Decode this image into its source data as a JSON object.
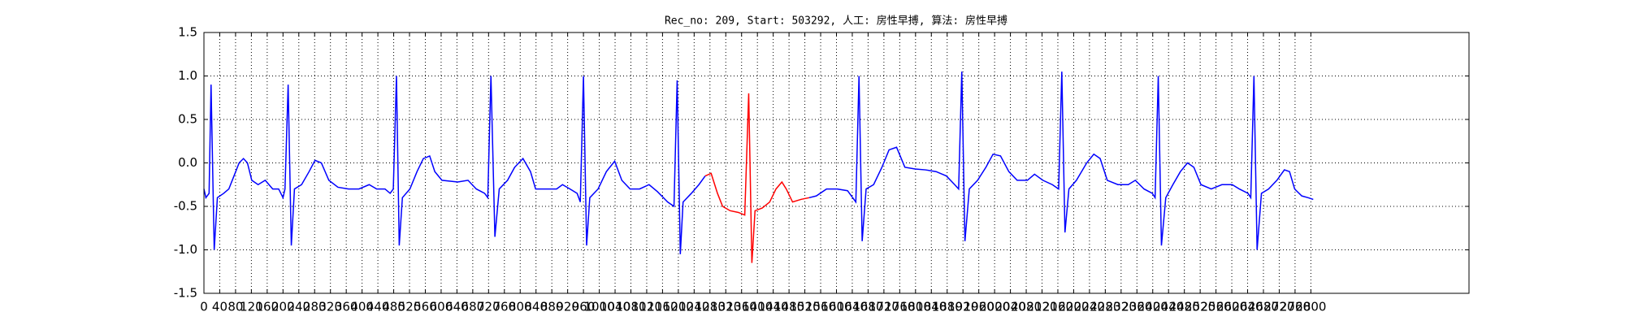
{
  "chart_data": {
    "type": "line",
    "title": "Rec_no: 209, Start: 503292, 人工: 房性早搏, 算法: 房性早搏",
    "xlim": [
      0,
      3200
    ],
    "ylim": [
      -1.5,
      1.5
    ],
    "xticks": [
      0,
      40,
      80,
      120,
      160,
      200,
      240,
      280,
      320,
      360,
      400,
      440,
      480,
      520,
      560,
      600,
      640,
      680,
      720,
      760,
      800,
      840,
      880,
      920,
      960,
      1000,
      1040,
      1080,
      1120,
      1160,
      1200,
      1240,
      1280,
      1320,
      1360,
      1400,
      1440,
      1480,
      1520,
      1560,
      1600,
      1640,
      1680,
      1720,
      1760,
      1800,
      1840,
      1880,
      1920,
      1960,
      2000,
      2040,
      2080,
      2120,
      2160,
      2200,
      2240,
      2280,
      2320,
      2360,
      2400,
      2440,
      2480,
      2520,
      2560,
      2600,
      2640,
      2680,
      2720,
      2760,
      2800
    ],
    "yticks": [
      -1.5,
      {
        "value": -1,
        "label": "-1.0"
      },
      -0.5,
      {
        "value": 0,
        "label": "0.0"
      },
      0.5,
      {
        "value": 1,
        "label": "1.0"
      },
      1.5
    ],
    "grid": true,
    "series": [
      {
        "color": "#0000ff",
        "x": [
          0,
          5,
          13,
          18,
          26,
          34,
          50,
          63,
          76,
          89,
          100,
          110,
          121,
          137,
          155,
          174,
          189,
          200,
          205,
          213,
          221,
          229,
          247,
          266,
          281,
          297,
          316,
          339,
          366,
          392,
          418,
          437,
          458,
          471,
          479,
          487,
          494,
          502,
          521,
          539,
          555,
          571,
          584,
          602,
          642,
          668,
          689,
          710,
          718,
          726,
          736,
          747,
          768,
          786,
          807,
          826,
          839,
          865,
          892,
          907,
          926,
          944,
          952,
          960,
          968,
          976,
          997,
          1018,
          1039,
          1057,
          1078,
          1102,
          1126,
          1147,
          1173,
          1189,
          1197,
          1205,
          1212,
          1233,
          1252,
          1268,
          1378,
          1531,
          1549,
          1575,
          1602,
          1628,
          1641,
          1649,
          1657,
          1665,
          1675,
          1694,
          1715,
          1733,
          1752,
          1773,
          1799,
          1825,
          1852,
          1878,
          1899,
          1909,
          1917,
          1925,
          1936,
          1957,
          1978,
          1996,
          2015,
          2036,
          2057,
          2083,
          2101,
          2122,
          2146,
          2162,
          2170,
          2178,
          2188,
          2207,
          2233,
          2251,
          2267,
          2285,
          2312,
          2338,
          2356,
          2378,
          2399,
          2406,
          2414,
          2422,
          2433,
          2451,
          2470,
          2488,
          2504,
          2522,
          2548,
          2575,
          2601,
          2619,
          2641,
          2648,
          2656,
          2664,
          2675,
          2693,
          2714,
          2733,
          2746,
          2759,
          2777,
          2793,
          2806
        ],
        "values": [
          -0.3,
          -0.4,
          -0.35,
          0.9,
          -1.0,
          -0.4,
          -0.35,
          -0.3,
          -0.15,
          0.0,
          0.05,
          0.0,
          -0.2,
          -0.25,
          -0.2,
          -0.3,
          -0.3,
          -0.4,
          -0.3,
          0.9,
          -0.95,
          -0.3,
          -0.25,
          -0.1,
          0.03,
          0.0,
          -0.2,
          -0.28,
          -0.3,
          -0.3,
          -0.25,
          -0.3,
          -0.3,
          -0.35,
          -0.3,
          1.0,
          -0.95,
          -0.4,
          -0.3,
          -0.1,
          0.05,
          0.08,
          -0.1,
          -0.2,
          -0.22,
          -0.2,
          -0.3,
          -0.35,
          -0.4,
          1.0,
          -0.85,
          -0.3,
          -0.2,
          -0.05,
          0.05,
          -0.1,
          -0.3,
          -0.3,
          -0.3,
          -0.25,
          -0.3,
          -0.35,
          -0.45,
          1.0,
          -0.95,
          -0.4,
          -0.3,
          -0.1,
          0.02,
          -0.2,
          -0.3,
          -0.3,
          -0.25,
          -0.33,
          -0.45,
          -0.5,
          0.95,
          -1.05,
          -0.45,
          -0.35,
          -0.25,
          -0.15,
          null,
          -0.4,
          -0.38,
          -0.3,
          -0.3,
          -0.32,
          -0.4,
          -0.45,
          1.0,
          -0.9,
          -0.3,
          -0.25,
          -0.05,
          0.15,
          0.18,
          -0.05,
          -0.07,
          -0.08,
          -0.1,
          -0.15,
          -0.25,
          -0.3,
          1.05,
          -0.9,
          -0.3,
          -0.2,
          -0.05,
          0.1,
          0.08,
          -0.1,
          -0.2,
          -0.2,
          -0.13,
          -0.2,
          -0.25,
          -0.3,
          1.05,
          -0.8,
          -0.3,
          -0.2,
          0.0,
          0.1,
          0.05,
          -0.2,
          -0.25,
          -0.25,
          -0.2,
          -0.3,
          -0.35,
          -0.4,
          1.0,
          -0.95,
          -0.4,
          -0.25,
          -0.1,
          0.0,
          -0.05,
          -0.25,
          -0.3,
          -0.25,
          -0.25,
          -0.3,
          -0.35,
          -0.4,
          1.0,
          -1.0,
          -0.35,
          -0.3,
          -0.2,
          -0.08,
          -0.1,
          -0.3,
          -0.38,
          -0.4,
          -0.42
        ]
      },
      {
        "color": "#ff0000",
        "x": [
          1268,
          1283,
          1299,
          1312,
          1331,
          1352,
          1368,
          1378,
          1386,
          1394,
          1412,
          1431,
          1447,
          1462,
          1473,
          1489,
          1510,
          1531
        ],
        "values": [
          -0.15,
          -0.12,
          -0.35,
          -0.5,
          -0.55,
          -0.57,
          -0.6,
          0.8,
          -1.15,
          -0.55,
          -0.52,
          -0.45,
          -0.3,
          -0.22,
          -0.3,
          -0.45,
          -0.42,
          -0.4
        ]
      }
    ]
  }
}
